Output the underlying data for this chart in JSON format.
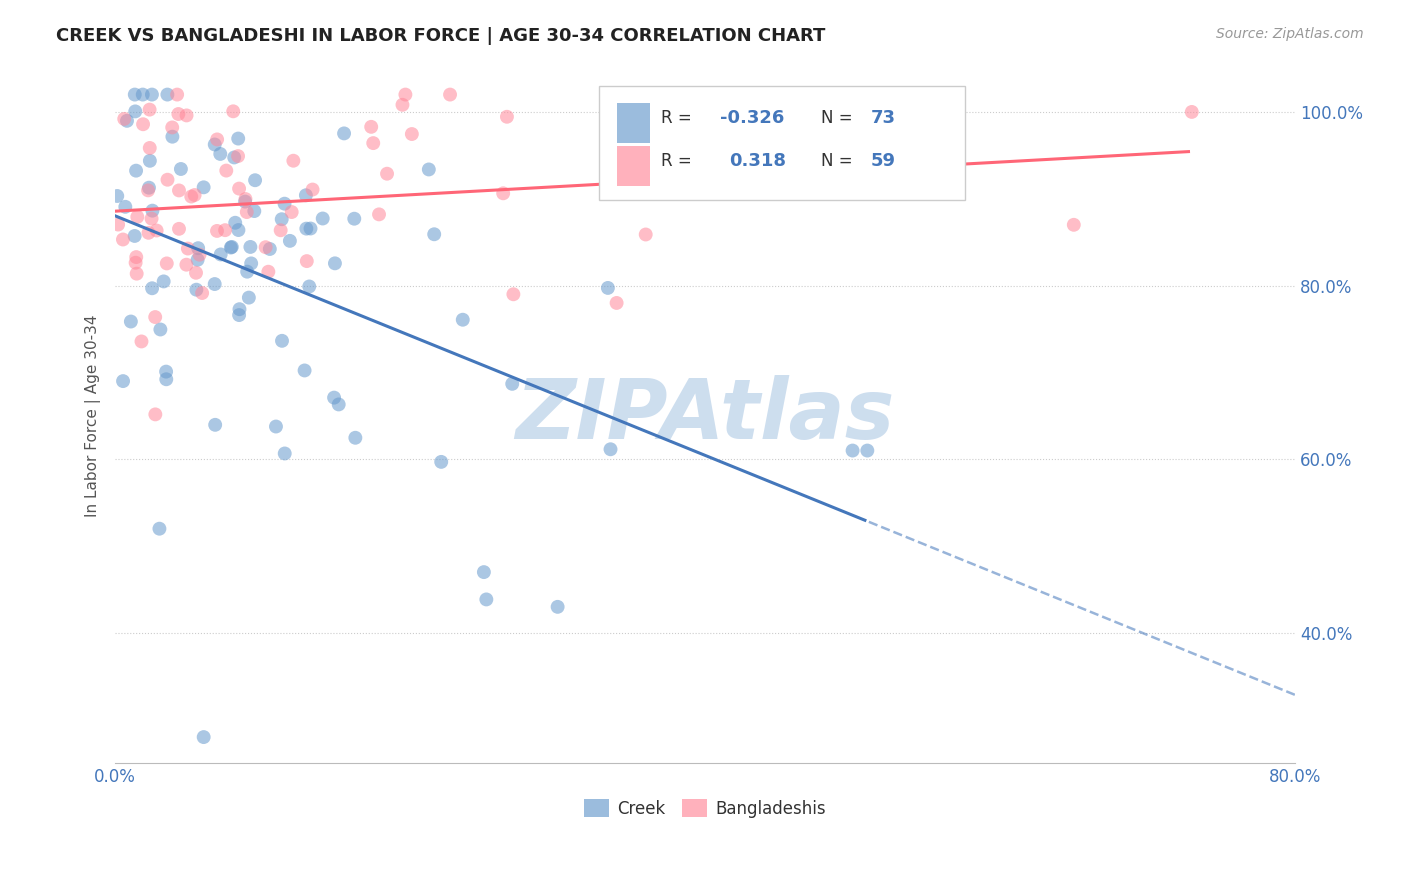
{
  "title": "CREEK VS BANGLADESHI IN LABOR FORCE | AGE 30-34 CORRELATION CHART",
  "source": "Source: ZipAtlas.com",
  "ylabel": "In Labor Force | Age 30-34",
  "xlim": [
    0.0,
    0.8
  ],
  "ylim": [
    0.25,
    1.05
  ],
  "x_ticks": [
    0.0,
    0.1,
    0.2,
    0.3,
    0.4,
    0.5,
    0.6,
    0.7,
    0.8
  ],
  "x_tick_labels": [
    "0.0%",
    "",
    "",
    "",
    "",
    "",
    "",
    "",
    "80.0%"
  ],
  "y_ticks": [
    0.4,
    0.6,
    0.8,
    1.0
  ],
  "y_tick_labels": [
    "40.0%",
    "60.0%",
    "80.0%",
    "100.0%"
  ],
  "creek_color": "#6699cc",
  "bangladeshi_color": "#ff8899",
  "creek_line_color": "#4477bb",
  "bangladeshi_line_color": "#ff6677",
  "creek_R": -0.326,
  "creek_N": 73,
  "bangladeshi_R": 0.318,
  "bangladeshi_N": 59,
  "watermark": "ZIPAtlas",
  "watermark_color": "#b8d0e8",
  "background_color": "#ffffff",
  "grid_color": "#cccccc",
  "title_color": "#222222",
  "axis_color": "#4477bb",
  "seed": 12
}
